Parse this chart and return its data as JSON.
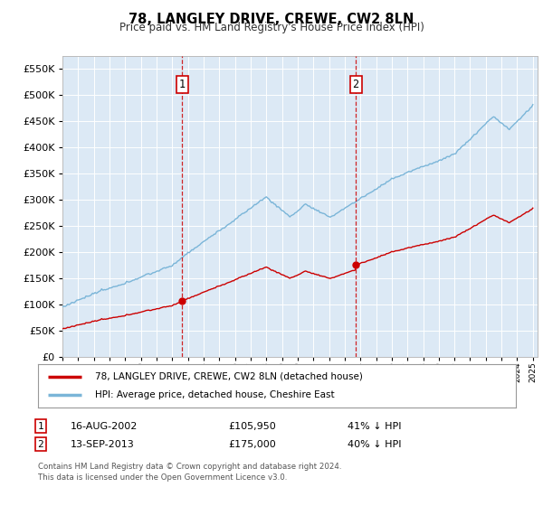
{
  "title": "78, LANGLEY DRIVE, CREWE, CW2 8LN",
  "subtitle": "Price paid vs. HM Land Registry's House Price Index (HPI)",
  "ylim": [
    0,
    575000
  ],
  "yticks": [
    0,
    50000,
    100000,
    150000,
    200000,
    250000,
    300000,
    350000,
    400000,
    450000,
    500000,
    550000
  ],
  "sale1_date": 2002.62,
  "sale1_price": 105950,
  "sale2_date": 2013.71,
  "sale2_price": 175000,
  "hpi_color": "#7ab5d8",
  "sale_color": "#cc0000",
  "plot_bg_color": "#dce9f5",
  "grid_color": "#ffffff",
  "legend_entry1": "78, LANGLEY DRIVE, CREWE, CW2 8LN (detached house)",
  "legend_entry2": "HPI: Average price, detached house, Cheshire East",
  "table_row1_date": "16-AUG-2002",
  "table_row1_price": "£105,950",
  "table_row1_hpi": "41% ↓ HPI",
  "table_row2_date": "13-SEP-2013",
  "table_row2_price": "£175,000",
  "table_row2_hpi": "40% ↓ HPI",
  "footnote": "Contains HM Land Registry data © Crown copyright and database right 2024.\nThis data is licensed under the Open Government Licence v3.0."
}
